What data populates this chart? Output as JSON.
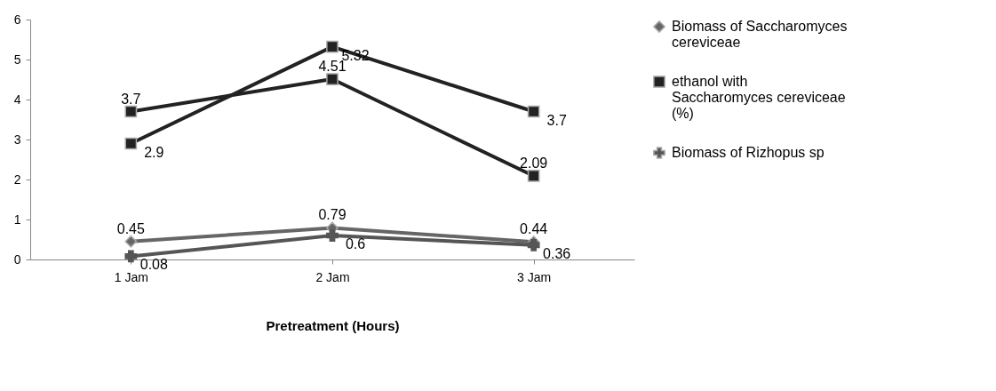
{
  "chart_data": {
    "type": "line",
    "xlabel": "Pretreatment (Hours)",
    "categories": [
      "1 Jam",
      "2 Jam",
      "3 Jam"
    ],
    "ylim": [
      0,
      6
    ],
    "yticks": [
      0,
      1,
      2,
      3,
      4,
      5,
      6
    ],
    "grid": false,
    "legend": "right",
    "data_labels": true,
    "line_style": "solid",
    "series": [
      {
        "name": "Biomass of Saccharomyces cereviceae",
        "color": "#666666",
        "marker": "diamond",
        "values": [
          0.45,
          0.79,
          0.44
        ]
      },
      {
        "name": "ethanol with Saccharomyces cereviceae (%)",
        "color": "#222222",
        "marker": "square",
        "values": [
          3.7,
          4.51,
          2.09
        ]
      },
      {
        "name": "Biomass of  Rizhopus sp",
        "color": "#555555",
        "marker": "cross",
        "values": [
          0.08,
          0.6,
          0.36
        ]
      },
      {
        "color": "#222222",
        "marker": "square",
        "values": [
          2.9,
          5.32,
          3.7
        ]
      }
    ]
  }
}
